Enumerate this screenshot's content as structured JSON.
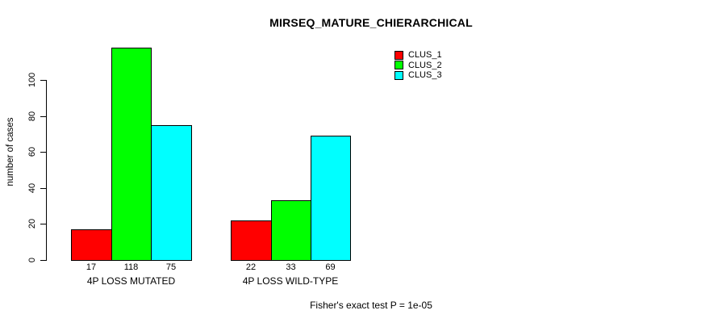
{
  "chart_data": {
    "type": "bar",
    "title": "MIRSEQ_MATURE_CHIERARCHICAL",
    "ylabel": "number of cases",
    "xlabel": "",
    "categories": [
      "4P LOSS MUTATED",
      "4P LOSS WILD-TYPE"
    ],
    "series": [
      {
        "name": "CLUS_1",
        "color": "#ff0000",
        "values": [
          17,
          22
        ]
      },
      {
        "name": "CLUS_2",
        "color": "#00ff00",
        "values": [
          118,
          33
        ]
      },
      {
        "name": "CLUS_3",
        "color": "#00ffff",
        "values": [
          75,
          69
        ]
      }
    ],
    "y_ticks": [
      0,
      20,
      40,
      60,
      80,
      100
    ],
    "ylim": [
      0,
      120
    ],
    "grid": false,
    "legend_position": "top-right-inside",
    "legend_entries": [
      "CLUS_1",
      "CLUS_2",
      "CLUS_3"
    ],
    "bar_value_labels": [
      [
        17,
        118,
        75
      ],
      [
        22,
        33,
        69
      ]
    ],
    "annotation": "Fisher's exact test P = 1e-05",
    "background_color": "#ffffff",
    "axis_color": "#000000"
  }
}
